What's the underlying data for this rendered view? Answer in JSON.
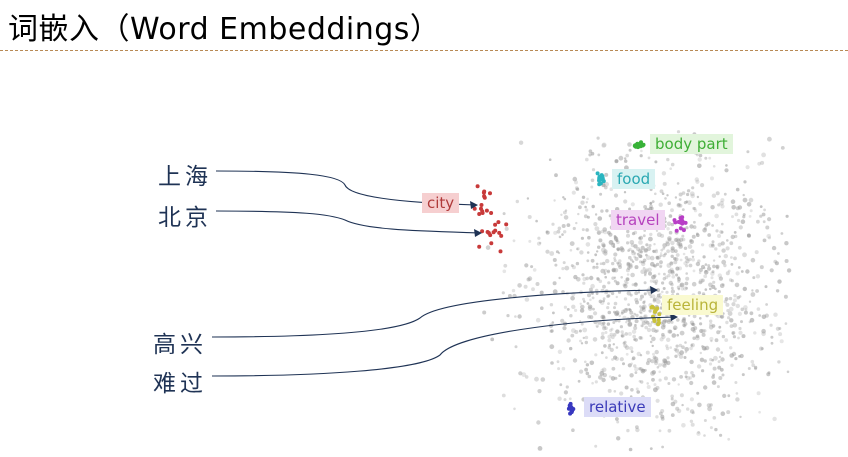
{
  "slide": {
    "title": "词嵌入（Word Embeddings）"
  },
  "words": [
    {
      "text": "上海"
    },
    {
      "text": "北京"
    },
    {
      "text": "高兴"
    },
    {
      "text": "难过"
    }
  ],
  "clusters": [
    {
      "name": "city",
      "color": "#c83a3a"
    },
    {
      "name": "food",
      "color": "#2ab5c0"
    },
    {
      "name": "body part",
      "color": "#38b238"
    },
    {
      "name": "travel",
      "color": "#b83ec6"
    },
    {
      "name": "feeling",
      "color": "#c9c23a"
    },
    {
      "name": "relative",
      "color": "#3838c0"
    }
  ]
}
